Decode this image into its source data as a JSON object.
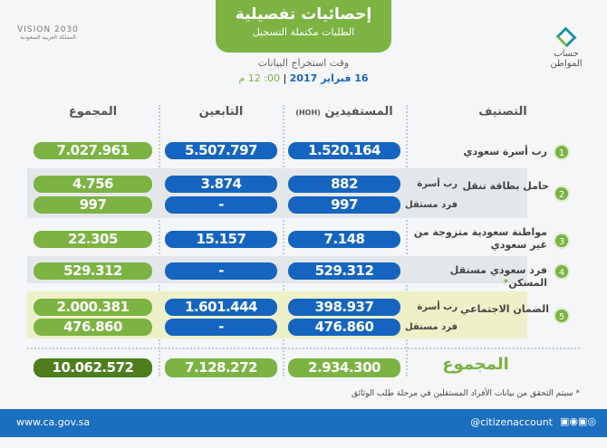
{
  "logos": {
    "vision": "VISION 2030",
    "vision_sub": "المملكة العربية السعودية",
    "brand": "حساب المواطن"
  },
  "header": {
    "title": "إحصائيات تفصيلية",
    "subtitle": "الطلبات مكتملة التسجيل",
    "time_label": "وقت استخراج البيانات",
    "date": "16 فبراير 2017",
    "time": "00: 12 م"
  },
  "columns": {
    "category": "التصنيف",
    "beneficiaries": "المستفيدين",
    "hoh": "(HOH)",
    "dependents": "التابعين",
    "total": "المجموع"
  },
  "rows": [
    {
      "n": "1",
      "label": "رب أسرة سعودي",
      "sub": [
        {
          "b": "1.520.164",
          "d": "5.507.797",
          "t": "7.027.961"
        }
      ]
    },
    {
      "n": "2",
      "label": "حامل بطاقة تنقل",
      "subs": [
        "رب أسرة",
        "فرد مستقل"
      ],
      "sub": [
        {
          "b": "882",
          "d": "3.874",
          "t": "4.756"
        },
        {
          "b": "997",
          "d": "-",
          "t": "997"
        }
      ]
    },
    {
      "n": "3",
      "label": "مواطنة سعودية متزوجة من غير سعودي",
      "sub": [
        {
          "b": "7.148",
          "d": "15.157",
          "t": "22.305"
        }
      ]
    },
    {
      "n": "4",
      "label": "فرد سعودي مستقل المسكن",
      "star": "*",
      "sub": [
        {
          "b": "529.312",
          "d": "-",
          "t": "529.312"
        }
      ]
    },
    {
      "n": "5",
      "label": "الضمان الاجتماعي",
      "subs": [
        "رب أسرة",
        "فرد مستقل"
      ],
      "sub": [
        {
          "b": "398.937",
          "d": "1.601.444",
          "t": "2.000.381"
        },
        {
          "b": "476.860",
          "d": "-",
          "t": "476.860"
        }
      ]
    }
  ],
  "totals": {
    "label": "المجموع",
    "b": "2.934.300",
    "d": "7.128.272",
    "t": "10.062.572"
  },
  "note": "* سيتم التحقق من بيانات الأفراد المستقلين في مرحلة طلب الوثائق",
  "footer": {
    "url": "www.ca.gov.sa",
    "handle": "@citizenaccount"
  },
  "colors": {
    "blue": "#1565c0",
    "green": "#7cb342",
    "dark_green": "#4e7d1e",
    "footer": "#1a6fbf"
  }
}
